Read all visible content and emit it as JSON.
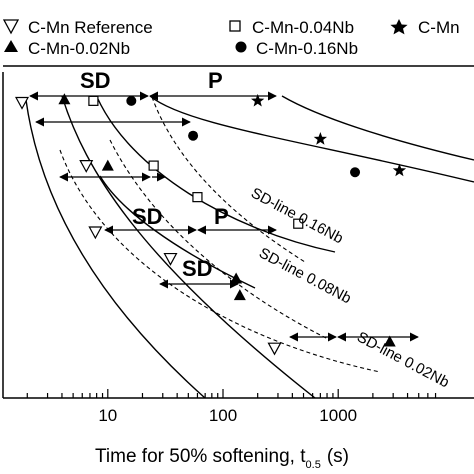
{
  "chart_data": {
    "type": "scatter",
    "xlabel": "Time for 50% softening, t",
    "xlabel_sub": "0.5",
    "xlabel_unit": "(s)",
    "xscale": "log",
    "xlim": [
      1.5,
      7000
    ],
    "x_ticks": [
      10,
      100,
      1000
    ],
    "x_tick_labels": [
      "10",
      "100",
      "1000"
    ],
    "ylim": [
      0,
      10
    ],
    "legend": {
      "placement": "top",
      "entries": [
        {
          "name": "C-Mn Reference",
          "marker": "triangle-down-open"
        },
        {
          "name": "C-Mn-0.04Nb",
          "marker": "square-open"
        },
        {
          "name": "C-Mn",
          "marker": "star"
        },
        {
          "name": "C-Mn-0.02Nb",
          "marker": "triangle-up-filled"
        },
        {
          "name": "C-Mn-0.16Nb",
          "marker": "circle-filled"
        }
      ]
    },
    "series": [
      {
        "name": "C-Mn Reference",
        "marker": "triangle-down-open",
        "points": [
          [
            1.8,
            8.9
          ],
          [
            6.5,
            7.0
          ],
          [
            7.8,
            5.0
          ],
          [
            35,
            4.2
          ],
          [
            280,
            1.5
          ]
        ]
      },
      {
        "name": "C-Mn-0.04Nb",
        "marker": "square-open",
        "points": [
          [
            7.5,
            8.95
          ],
          [
            25,
            7.0
          ],
          [
            60,
            6.05
          ],
          [
            450,
            5.25
          ]
        ]
      },
      {
        "name": "C-Mn-0.02Nb",
        "marker": "triangle-up-filled",
        "points": [
          [
            4.2,
            9.0
          ],
          [
            10,
            7.0
          ],
          [
            130,
            3.6
          ],
          [
            140,
            3.1
          ],
          [
            2800,
            1.7
          ]
        ]
      },
      {
        "name": "C-Mn-0.16Nb",
        "marker": "circle-filled",
        "points": [
          [
            16,
            8.95
          ],
          [
            55,
            7.9
          ],
          [
            1400,
            6.8
          ]
        ]
      },
      {
        "name": "C-Mn",
        "marker": "star",
        "points": [
          [
            200,
            8.95
          ],
          [
            700,
            7.8
          ],
          [
            3400,
            6.85
          ]
        ]
      }
    ],
    "annotations": [
      {
        "text": "SD"
      },
      {
        "text": "P"
      },
      {
        "text": "SD"
      },
      {
        "text": "P"
      },
      {
        "text": "SD"
      },
      {
        "text": "SD-line 0.16Nb"
      },
      {
        "text": "SD-line 0.08Nb"
      },
      {
        "text": "SD-line 0.02Nb"
      }
    ]
  }
}
